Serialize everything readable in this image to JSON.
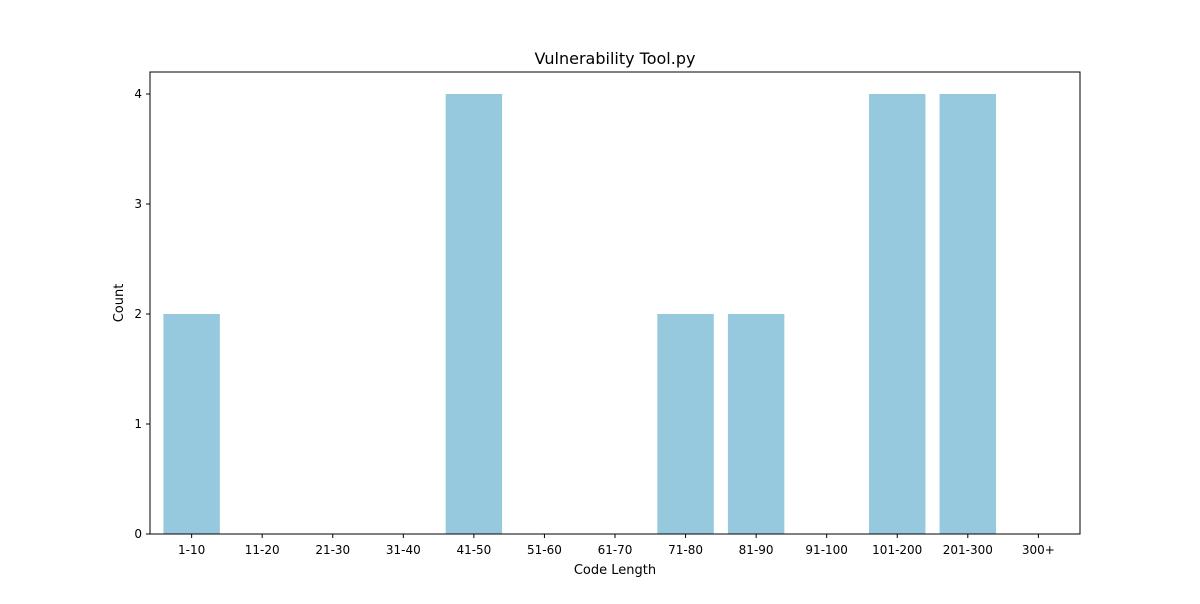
{
  "chart_data": {
    "type": "bar",
    "title": "Vulnerability Tool.py",
    "xlabel": "Code Length",
    "ylabel": "Count",
    "categories": [
      "1-10",
      "11-20",
      "21-30",
      "31-40",
      "41-50",
      "51-60",
      "61-70",
      "71-80",
      "81-90",
      "91-100",
      "101-200",
      "201-300",
      "300+"
    ],
    "values": [
      2,
      0,
      0,
      0,
      4,
      0,
      0,
      2,
      2,
      0,
      4,
      4,
      0
    ],
    "yticks": [
      0,
      1,
      2,
      3,
      4
    ],
    "ylim": [
      0,
      4.2
    ],
    "grid": false,
    "bar_color": "#96c9de"
  }
}
